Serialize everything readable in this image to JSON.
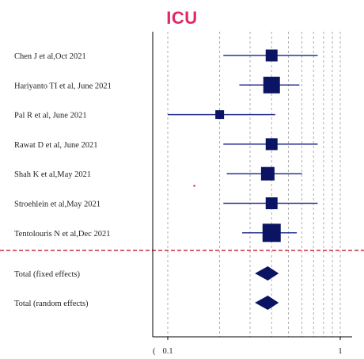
{
  "chart_data": {
    "type": "forest",
    "title": "ICU",
    "x_scale": "log",
    "xlim": [
      0.085,
      1.15
    ],
    "x_ticks": [
      {
        "value": 0.1,
        "label": "0.1"
      },
      {
        "value": 1,
        "label": "1"
      }
    ],
    "x_tick_prefix": "(",
    "grid_lines": [
      0.1,
      0.2,
      0.3,
      0.4,
      0.5,
      0.6,
      0.7,
      0.8,
      0.9,
      1.0
    ],
    "studies": [
      {
        "label": "Chen J et al,Oct 2021",
        "estimate": 0.4,
        "lower": 0.21,
        "upper": 0.74,
        "weight": 1.0
      },
      {
        "label": "Hariyanto TI et al, June 2021",
        "estimate": 0.4,
        "lower": 0.26,
        "upper": 0.58,
        "weight": 1.6
      },
      {
        "label": "Pal R et al, June 2021",
        "estimate": 0.2,
        "lower": 0.1,
        "upper": 0.42,
        "weight": 0.6
      },
      {
        "label": "Rawat D et al, June 2021",
        "estimate": 0.4,
        "lower": 0.21,
        "upper": 0.74,
        "weight": 1.0
      },
      {
        "label": "Shah K et al,May 2021",
        "estimate": 0.38,
        "lower": 0.22,
        "upper": 0.6,
        "weight": 1.2
      },
      {
        "label": "Stroehlein et al,May 2021",
        "estimate": 0.4,
        "lower": 0.21,
        "upper": 0.74,
        "weight": 1.0
      },
      {
        "label": "Tentolouris N et al,Dec 2021",
        "estimate": 0.4,
        "lower": 0.27,
        "upper": 0.56,
        "weight": 1.8
      }
    ],
    "totals": [
      {
        "label": "Total (fixed effects)",
        "estimate": 0.38,
        "lower": 0.32,
        "upper": 0.44
      },
      {
        "label": "Total (random effects)",
        "estimate": 0.38,
        "lower": 0.32,
        "upper": 0.44
      }
    ],
    "separator_color": "#c0001a",
    "marker_color": "#0b1463",
    "line_color": "#2a3390"
  }
}
